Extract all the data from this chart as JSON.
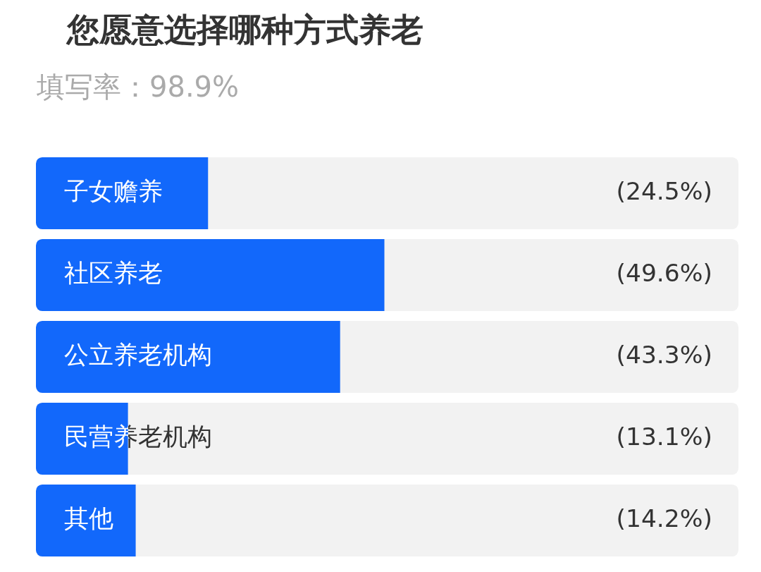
{
  "chart_data": {
    "type": "bar",
    "orientation": "horizontal",
    "title": "您愿意选择哪种方式养老",
    "subtitle": "填写率：98.9%",
    "categories": [
      "子女赡养",
      "社区养老",
      "公立养老机构",
      "民营养老机构",
      "其他"
    ],
    "values": [
      24.5,
      49.6,
      43.3,
      13.1,
      14.2
    ],
    "value_labels": [
      "(24.5%)",
      "(49.6%)",
      "(43.3%)",
      "(13.1%)",
      "(14.2%)"
    ],
    "color": "#1268fb",
    "xlim": [
      0,
      100
    ],
    "tick_labels": "y"
  }
}
